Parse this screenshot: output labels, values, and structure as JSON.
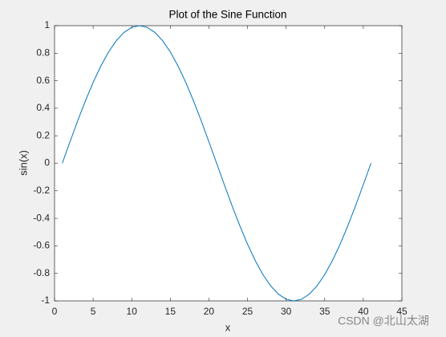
{
  "chart_data": {
    "type": "line",
    "title": "Plot of the Sine Function",
    "x_label": "x",
    "y_label": "sin(x)",
    "x": [
      1,
      2,
      3,
      4,
      5,
      6,
      7,
      8,
      9,
      10,
      11,
      12,
      13,
      14,
      15,
      16,
      17,
      18,
      19,
      20,
      21,
      22,
      23,
      24,
      25,
      26,
      27,
      28,
      29,
      30,
      31,
      32,
      33,
      34,
      35,
      36,
      37,
      38,
      39,
      40,
      41
    ],
    "series": [
      {
        "color": "#0072bd",
        "values": [
          0,
          0.156,
          0.309,
          0.454,
          0.588,
          0.707,
          0.809,
          0.891,
          0.951,
          0.988,
          1,
          0.988,
          0.951,
          0.891,
          0.809,
          0.707,
          0.588,
          0.454,
          0.309,
          0.156,
          0,
          -0.156,
          -0.309,
          -0.454,
          -0.588,
          -0.707,
          -0.809,
          -0.891,
          -0.951,
          -0.988,
          -1,
          -0.988,
          -0.951,
          -0.891,
          -0.809,
          -0.707,
          -0.588,
          -0.454,
          -0.309,
          -0.156,
          0
        ]
      }
    ],
    "xlim": [
      0,
      45
    ],
    "xticks": [
      0,
      5,
      10,
      15,
      20,
      25,
      30,
      35,
      40,
      45
    ],
    "ylim": [
      -1,
      1
    ],
    "yticks": [
      -1,
      -0.8,
      -0.6,
      -0.4,
      -0.2,
      0,
      0.2,
      0.4,
      0.6,
      0.8,
      1
    ],
    "grid": false
  },
  "watermark": "CSDN @北山太湖"
}
